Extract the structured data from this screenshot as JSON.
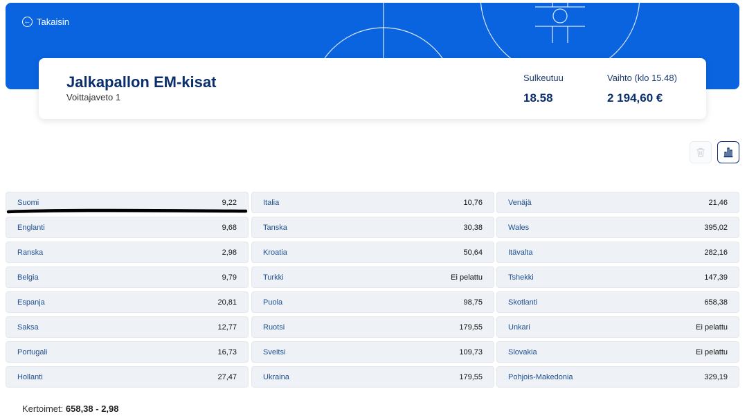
{
  "nav": {
    "back_label": "Takaisin"
  },
  "header": {
    "title": "Jalkapallon EM-kisat",
    "subtitle": "Voittajaveto 1",
    "closes_label": "Sulkeutuu",
    "closes_value": "18.58",
    "exchange_label": "Vaihto (klo 15.48)",
    "exchange_value": "2 194,60 €"
  },
  "icons": {
    "back": "arrow-left-circle-icon",
    "trash": "trash-icon",
    "chart": "bar-chart-icon"
  },
  "colors": {
    "hero": "#0a64e0",
    "title": "#0b2f6b",
    "row_bg": "#eef1f5",
    "team_text": "#1f4f8f"
  },
  "columns": [
    [
      {
        "team": "Suomi",
        "odds": "9,22"
      },
      {
        "team": "Englanti",
        "odds": "9,68"
      },
      {
        "team": "Ranska",
        "odds": "2,98"
      },
      {
        "team": "Belgia",
        "odds": "9,79"
      },
      {
        "team": "Espanja",
        "odds": "20,81"
      },
      {
        "team": "Saksa",
        "odds": "12,77"
      },
      {
        "team": "Portugali",
        "odds": "16,73"
      },
      {
        "team": "Hollanti",
        "odds": "27,47"
      }
    ],
    [
      {
        "team": "Italia",
        "odds": "10,76"
      },
      {
        "team": "Tanska",
        "odds": "30,38"
      },
      {
        "team": "Kroatia",
        "odds": "50,64"
      },
      {
        "team": "Turkki",
        "odds": "Ei pelattu"
      },
      {
        "team": "Puola",
        "odds": "98,75"
      },
      {
        "team": "Ruotsi",
        "odds": "179,55"
      },
      {
        "team": "Sveitsi",
        "odds": "109,73"
      },
      {
        "team": "Ukraina",
        "odds": "179,55"
      }
    ],
    [
      {
        "team": "Venäjä",
        "odds": "21,46"
      },
      {
        "team": "Wales",
        "odds": "395,02"
      },
      {
        "team": "Itävalta",
        "odds": "282,16"
      },
      {
        "team": "Tshekki",
        "odds": "147,39"
      },
      {
        "team": "Skotlanti",
        "odds": "658,38"
      },
      {
        "team": "Unkari",
        "odds": "Ei pelattu"
      },
      {
        "team": "Slovakia",
        "odds": "Ei pelattu"
      },
      {
        "team": "Pohjois-Makedonia",
        "odds": "329,19"
      }
    ]
  ],
  "footer": {
    "label": "Kertoimet:",
    "value": "658,38 - 2,98"
  }
}
